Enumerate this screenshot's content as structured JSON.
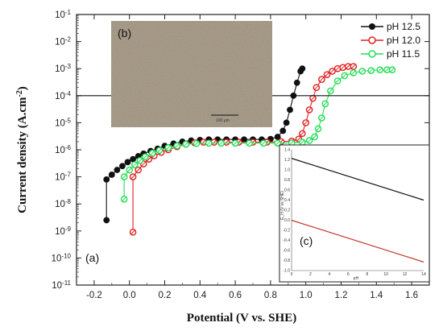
{
  "chart_data": {
    "type": "scatter",
    "xlabel": "Potential (V vs. SHE)",
    "ylabel_base": "Current density (A.cm",
    "ylabel_sup": "-2",
    "ylabel_end": ")",
    "xlim": [
      -0.3,
      1.7
    ],
    "ylim_log10": [
      -11,
      -1
    ],
    "x_ticks": [
      "-0.2",
      "0.0",
      "0.2",
      "0.4",
      "0.6",
      "0.8",
      "1.0",
      "1.2",
      "1.4",
      "1.6"
    ],
    "y_ticks": [
      {
        "base": "10",
        "exp": "-1"
      },
      {
        "base": "10",
        "exp": "-2"
      },
      {
        "base": "10",
        "exp": "-3"
      },
      {
        "base": "10",
        "exp": "-4"
      },
      {
        "base": "10",
        "exp": "-5"
      },
      {
        "base": "10",
        "exp": "-6"
      },
      {
        "base": "10",
        "exp": "-7"
      },
      {
        "base": "10",
        "exp": "-8"
      },
      {
        "base": "10",
        "exp": "-9"
      },
      {
        "base": "10",
        "exp": "-10"
      },
      {
        "base": "10",
        "exp": "-11"
      }
    ],
    "reference_line_y": 0.0001,
    "series": [
      {
        "name": "pH  12.5",
        "color": "#111111",
        "points": [
          [
            -0.13,
            2.5e-09
          ],
          [
            -0.13,
            8e-08
          ],
          [
            -0.1,
            1.2e-07
          ],
          [
            -0.07,
            1.8e-07
          ],
          [
            -0.04,
            2.5e-07
          ],
          [
            -0.01,
            3.5e-07
          ],
          [
            0.02,
            4.5e-07
          ],
          [
            0.05,
            5.8e-07
          ],
          [
            0.08,
            7.2e-07
          ],
          [
            0.12,
            9e-07
          ],
          [
            0.16,
            1.1e-06
          ],
          [
            0.2,
            1.4e-06
          ],
          [
            0.25,
            1.7e-06
          ],
          [
            0.3,
            2e-06
          ],
          [
            0.35,
            2.2e-06
          ],
          [
            0.4,
            2.3e-06
          ],
          [
            0.45,
            2.4e-06
          ],
          [
            0.5,
            2.4e-06
          ],
          [
            0.55,
            2.4e-06
          ],
          [
            0.6,
            2.4e-06
          ],
          [
            0.65,
            2.4e-06
          ],
          [
            0.7,
            2.4e-06
          ],
          [
            0.75,
            2.4e-06
          ],
          [
            0.8,
            2.5e-06
          ],
          [
            0.84,
            3e-06
          ],
          [
            0.87,
            5e-06
          ],
          [
            0.89,
            1e-05
          ],
          [
            0.91,
            3e-05
          ],
          [
            0.93,
            0.0001
          ],
          [
            0.95,
            0.0003
          ],
          [
            0.97,
            0.0008
          ],
          [
            0.98,
            0.001
          ]
        ]
      },
      {
        "name": "pH  12.0",
        "color": "#e02020",
        "points": [
          [
            0.02,
            9e-10
          ],
          [
            0.02,
            1e-07
          ],
          [
            0.05,
            1.8e-07
          ],
          [
            0.08,
            3e-07
          ],
          [
            0.11,
            4.5e-07
          ],
          [
            0.14,
            6e-07
          ],
          [
            0.18,
            8e-07
          ],
          [
            0.22,
            1e-06
          ],
          [
            0.27,
            1.3e-06
          ],
          [
            0.32,
            1.6e-06
          ],
          [
            0.37,
            1.8e-06
          ],
          [
            0.42,
            1.9e-06
          ],
          [
            0.48,
            1.9e-06
          ],
          [
            0.55,
            1.9e-06
          ],
          [
            0.62,
            1.9e-06
          ],
          [
            0.7,
            1.9e-06
          ],
          [
            0.78,
            1.9e-06
          ],
          [
            0.86,
            2e-06
          ],
          [
            0.92,
            2.1e-06
          ],
          [
            0.96,
            2.5e-06
          ],
          [
            0.98,
            4e-06
          ],
          [
            1.0,
            1e-05
          ],
          [
            1.02,
            3e-05
          ],
          [
            1.04,
            8e-05
          ],
          [
            1.06,
            0.0002
          ],
          [
            1.09,
            0.0004
          ],
          [
            1.12,
            0.0006
          ],
          [
            1.15,
            0.0008
          ],
          [
            1.18,
            0.001
          ],
          [
            1.21,
            0.0011
          ],
          [
            1.24,
            0.0012
          ],
          [
            1.27,
            0.0012
          ]
        ]
      },
      {
        "name": "pH  11.5",
        "color": "#22dd55",
        "points": [
          [
            -0.03,
            1.5e-08
          ],
          [
            -0.03,
            1e-07
          ],
          [
            0.0,
            1.8e-07
          ],
          [
            0.03,
            2.8e-07
          ],
          [
            0.06,
            4e-07
          ],
          [
            0.09,
            5.5e-07
          ],
          [
            0.13,
            7.5e-07
          ],
          [
            0.17,
            9.5e-07
          ],
          [
            0.22,
            1.2e-06
          ],
          [
            0.27,
            1.4e-06
          ],
          [
            0.32,
            1.6e-06
          ],
          [
            0.38,
            1.7e-06
          ],
          [
            0.45,
            1.75e-06
          ],
          [
            0.52,
            1.75e-06
          ],
          [
            0.6,
            1.75e-06
          ],
          [
            0.68,
            1.75e-06
          ],
          [
            0.76,
            1.75e-06
          ],
          [
            0.84,
            1.75e-06
          ],
          [
            0.92,
            1.8e-06
          ],
          [
            0.98,
            1.9e-06
          ],
          [
            1.02,
            2.2e-06
          ],
          [
            1.05,
            3e-06
          ],
          [
            1.07,
            6e-06
          ],
          [
            1.09,
            1.5e-05
          ],
          [
            1.11,
            5e-05
          ],
          [
            1.14,
            0.00015
          ],
          [
            1.18,
            0.00035
          ],
          [
            1.22,
            0.00055
          ],
          [
            1.27,
            0.0007
          ],
          [
            1.32,
            0.0008
          ],
          [
            1.37,
            0.00085
          ],
          [
            1.42,
            0.0009
          ],
          [
            1.46,
            0.0009
          ],
          [
            1.49,
            0.0009
          ]
        ]
      }
    ],
    "panel_labels": {
      "a": "(a)",
      "b": "(b)",
      "c": "(c)"
    },
    "scale_bar": "100 μm",
    "inset_c": {
      "xlabel": "pH",
      "ylabel": "E_H (V vs SHE)",
      "x_ticks": [
        "0",
        "2",
        "4",
        "6",
        "8",
        "10",
        "12",
        "14"
      ],
      "y_ticks": [
        "1.4",
        "1.2",
        "1.0",
        "0.8",
        "0.6",
        "0.4",
        "0.2",
        "0.0",
        "-0.2",
        "-0.4",
        "-0.6",
        "-0.8",
        "-1.0"
      ],
      "lines": [
        {
          "color": "#111111",
          "from": [
            0,
            1.23
          ],
          "to": [
            14,
            0.4
          ]
        },
        {
          "color": "#c0392b",
          "from": [
            0,
            0.0
          ],
          "to": [
            14,
            -0.83
          ]
        }
      ]
    }
  }
}
